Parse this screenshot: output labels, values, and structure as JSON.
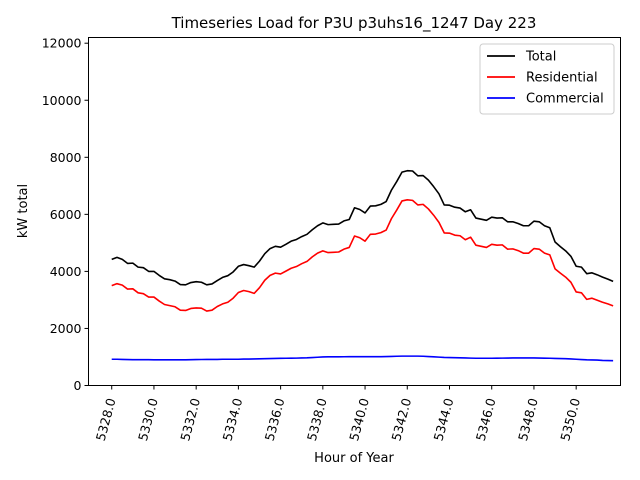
{
  "chart_data": {
    "type": "line",
    "title": "Timeseries Load for P3U p3uhs16_1247  Day 223",
    "xlabel": "Hour of Year",
    "ylabel": "kW total",
    "xlim": [
      5326.9,
      5352.1
    ],
    "ylim": [
      0,
      12200
    ],
    "x_ticks": [
      5328.0,
      5330.0,
      5332.0,
      5334.0,
      5336.0,
      5338.0,
      5340.0,
      5342.0,
      5344.0,
      5346.0,
      5348.0,
      5350.0
    ],
    "x_tick_labels": [
      "5328.0",
      "5330.0",
      "5332.0",
      "5334.0",
      "5336.0",
      "5338.0",
      "5340.0",
      "5342.0",
      "5344.0",
      "5346.0",
      "5348.0",
      "5350.0"
    ],
    "y_ticks": [
      0,
      2000,
      4000,
      6000,
      8000,
      10000,
      12000
    ],
    "y_tick_labels": [
      "0",
      "2000",
      "4000",
      "6000",
      "8000",
      "10000",
      "12000"
    ],
    "legend_position": "top-right",
    "x_start": 5328.0,
    "x_step": 0.25,
    "series": [
      {
        "name": "Total",
        "color": "#000000",
        "values": [
          4420,
          4490,
          4420,
          4280,
          4290,
          4150,
          4130,
          4000,
          4000,
          3860,
          3740,
          3710,
          3660,
          3540,
          3530,
          3610,
          3640,
          3620,
          3530,
          3560,
          3680,
          3790,
          3850,
          3980,
          4180,
          4240,
          4200,
          4150,
          4360,
          4620,
          4800,
          4880,
          4850,
          4950,
          5060,
          5120,
          5220,
          5300,
          5460,
          5600,
          5700,
          5640,
          5650,
          5660,
          5770,
          5820,
          6230,
          6170,
          6050,
          6290,
          6300,
          6350,
          6450,
          6850,
          7150,
          7480,
          7530,
          7520,
          7350,
          7360,
          7200,
          6970,
          6720,
          6330,
          6320,
          6250,
          6220,
          6090,
          6160,
          5870,
          5830,
          5790,
          5900,
          5870,
          5880,
          5740,
          5740,
          5680,
          5600,
          5600,
          5760,
          5740,
          5600,
          5530,
          5030,
          4870,
          4720,
          4530,
          4180,
          4150,
          3920,
          3950,
          3880,
          3800,
          3730,
          3650
        ]
      },
      {
        "name": "Residential",
        "color": "#ff0000",
        "values": [
          3500,
          3570,
          3520,
          3380,
          3390,
          3250,
          3220,
          3100,
          3100,
          2960,
          2840,
          2800,
          2760,
          2640,
          2630,
          2700,
          2720,
          2710,
          2610,
          2640,
          2770,
          2860,
          2920,
          3060,
          3260,
          3330,
          3290,
          3230,
          3430,
          3690,
          3860,
          3940,
          3910,
          4010,
          4110,
          4170,
          4270,
          4350,
          4510,
          4640,
          4720,
          4660,
          4670,
          4680,
          4780,
          4840,
          5240,
          5180,
          5060,
          5300,
          5310,
          5360,
          5450,
          5850,
          6150,
          6470,
          6510,
          6490,
          6330,
          6350,
          6190,
          5970,
          5720,
          5350,
          5340,
          5270,
          5250,
          5110,
          5200,
          4920,
          4880,
          4840,
          4950,
          4920,
          4930,
          4780,
          4790,
          4730,
          4640,
          4640,
          4800,
          4780,
          4640,
          4580,
          4090,
          3940,
          3800,
          3620,
          3280,
          3250,
          3020,
          3060,
          2990,
          2920,
          2860,
          2790
        ]
      },
      {
        "name": "Commercial",
        "color": "#0000ff",
        "values": [
          920,
          920,
          915,
          910,
          905,
          905,
          905,
          905,
          900,
          900,
          900,
          900,
          900,
          900,
          900,
          905,
          910,
          912,
          915,
          915,
          915,
          920,
          920,
          920,
          920,
          925,
          928,
          930,
          935,
          940,
          945,
          950,
          952,
          955,
          958,
          960,
          965,
          970,
          980,
          990,
          1000,
          1005,
          1005,
          1005,
          1008,
          1010,
          1010,
          1010,
          1010,
          1010,
          1010,
          1010,
          1015,
          1020,
          1025,
          1030,
          1030,
          1030,
          1030,
          1025,
          1015,
          1005,
          995,
          985,
          980,
          975,
          970,
          965,
          960,
          955,
          955,
          955,
          955,
          958,
          960,
          962,
          965,
          965,
          965,
          965,
          965,
          962,
          958,
          955,
          950,
          945,
          940,
          930,
          920,
          910,
          900,
          895,
          890,
          880,
          875,
          870
        ]
      }
    ]
  }
}
